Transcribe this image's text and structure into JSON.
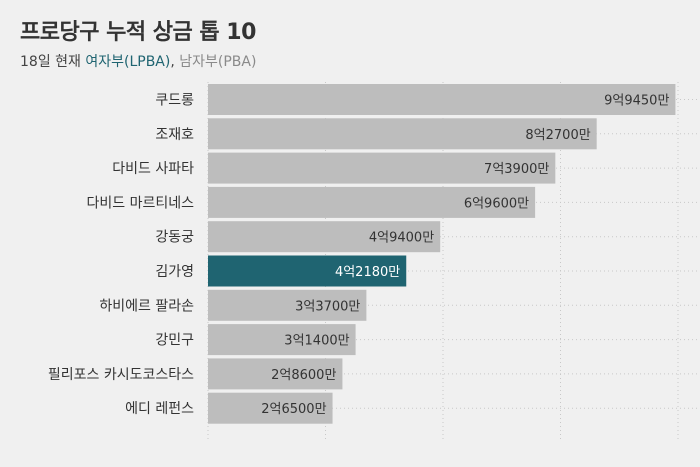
{
  "title": "프로당구 누적 상금 톱 10",
  "subtitle": {
    "prefix": "18일 현재 ",
    "female": "여자부(LPBA)",
    "separator": ", ",
    "male": "남자부(PBA)"
  },
  "colors": {
    "female": "#1f6471",
    "male": "#bdbdbd",
    "background": "#f0f0f0"
  },
  "chart_data": {
    "type": "bar",
    "orientation": "horizontal",
    "categories": [
      "쿠드롱",
      "조재호",
      "다비드 사파타",
      "다비드 마르티네스",
      "강동궁",
      "김가영",
      "하비에르 팔라손",
      "강민구",
      "필리포스 카시도코스타스",
      "에디 레펀스"
    ],
    "values": [
      99450,
      82700,
      73900,
      69600,
      49400,
      42180,
      33700,
      31400,
      28600,
      26500
    ],
    "value_labels": [
      "9억9450만",
      "8억2700만",
      "7억3900만",
      "6억9600만",
      "4억9400만",
      "4억2180만",
      "3억3700만",
      "3억1400만",
      "2억8600만",
      "2억6500만"
    ],
    "division": [
      "PBA",
      "PBA",
      "PBA",
      "PBA",
      "PBA",
      "LPBA",
      "PBA",
      "PBA",
      "PBA",
      "PBA"
    ],
    "unit": "만원",
    "xlim": [
      0,
      100000
    ],
    "grid": true
  }
}
